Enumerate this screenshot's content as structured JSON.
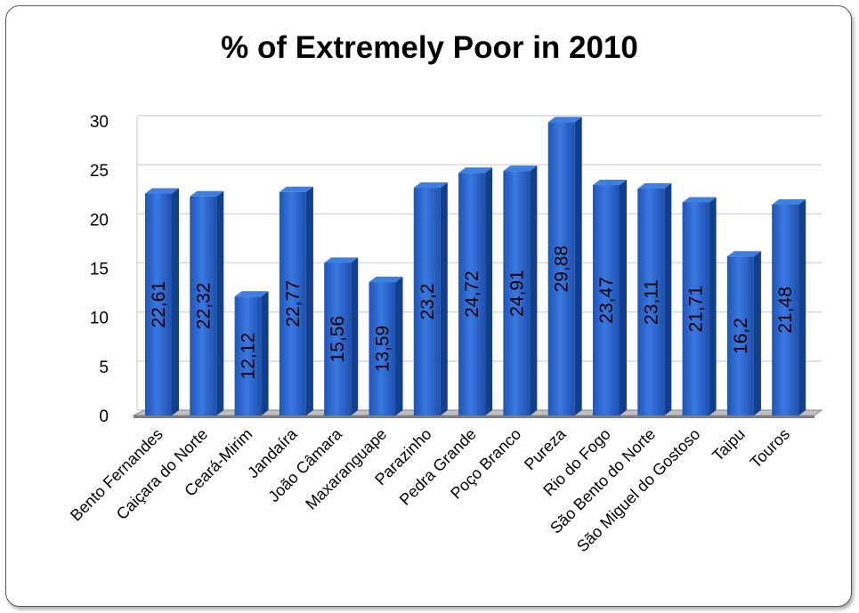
{
  "chart_data": {
    "type": "bar",
    "title": "% of Extremely Poor in 2010",
    "xlabel": "",
    "ylabel": "",
    "ylim": [
      0,
      30
    ],
    "yticks": [
      "0",
      "5",
      "10",
      "15",
      "20",
      "25",
      "30"
    ],
    "grid": true,
    "legend": "none",
    "categories": [
      "Bento Fernandes",
      "Caiçara do Norte",
      "Ceará-Mirim",
      "Jandaíra",
      "João Câmara",
      "Maxaranguape",
      "Parazinho",
      "Pedra Grande",
      "Poço Branco",
      "Pureza",
      "Rio do Fogo",
      "São Bento do Norte",
      "São Miguel do Gostoso",
      "Taipu",
      "Touros"
    ],
    "values": [
      22.61,
      22.32,
      12.12,
      22.77,
      15.56,
      13.59,
      23.2,
      24.72,
      24.91,
      29.88,
      23.47,
      23.11,
      21.71,
      16.2,
      21.48
    ],
    "data_labels": [
      "22,61",
      "22,32",
      "12,12",
      "22,77",
      "15,56",
      "13,59",
      "23,2",
      "24,72",
      "24,91",
      "29,88",
      "23,47",
      "23,11",
      "21,71",
      "16,2",
      "21,48"
    ],
    "colors": {
      "bar_front": "#2563cc",
      "bar_side": "#123f8c",
      "bar_top": "#3f7fe0"
    }
  }
}
